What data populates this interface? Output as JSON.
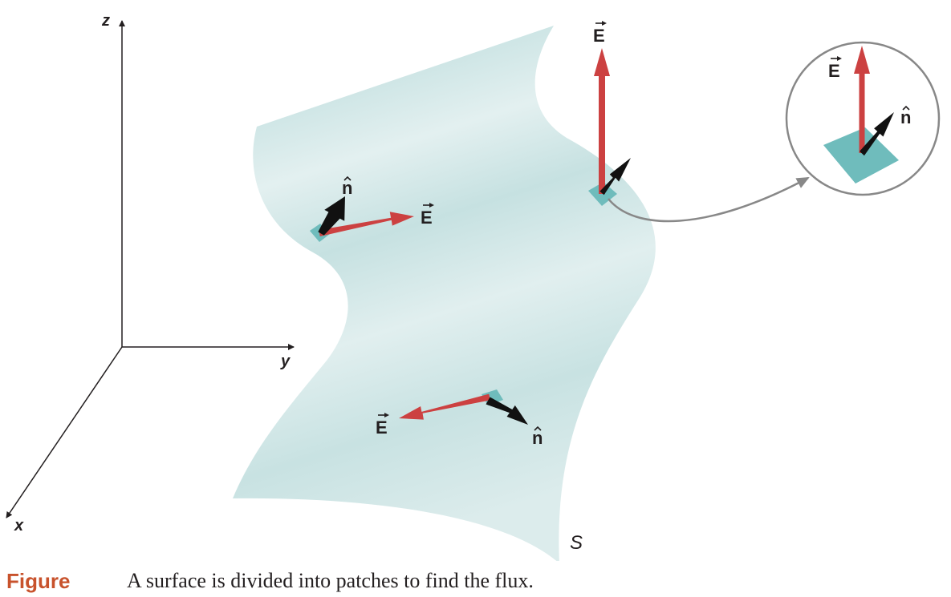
{
  "axes": {
    "z": "z",
    "y": "y",
    "x": "x"
  },
  "labels": {
    "E": "E",
    "n": "n",
    "surface": "S"
  },
  "colors": {
    "surface": "#cfe6e6",
    "patch": "#6fbcbc",
    "field_vector": "#cc4141",
    "normal_vector": "#111111",
    "callout_circle": "#888888"
  },
  "caption": {
    "label": "Figure",
    "text": "A surface is divided into patches to find the flux."
  }
}
